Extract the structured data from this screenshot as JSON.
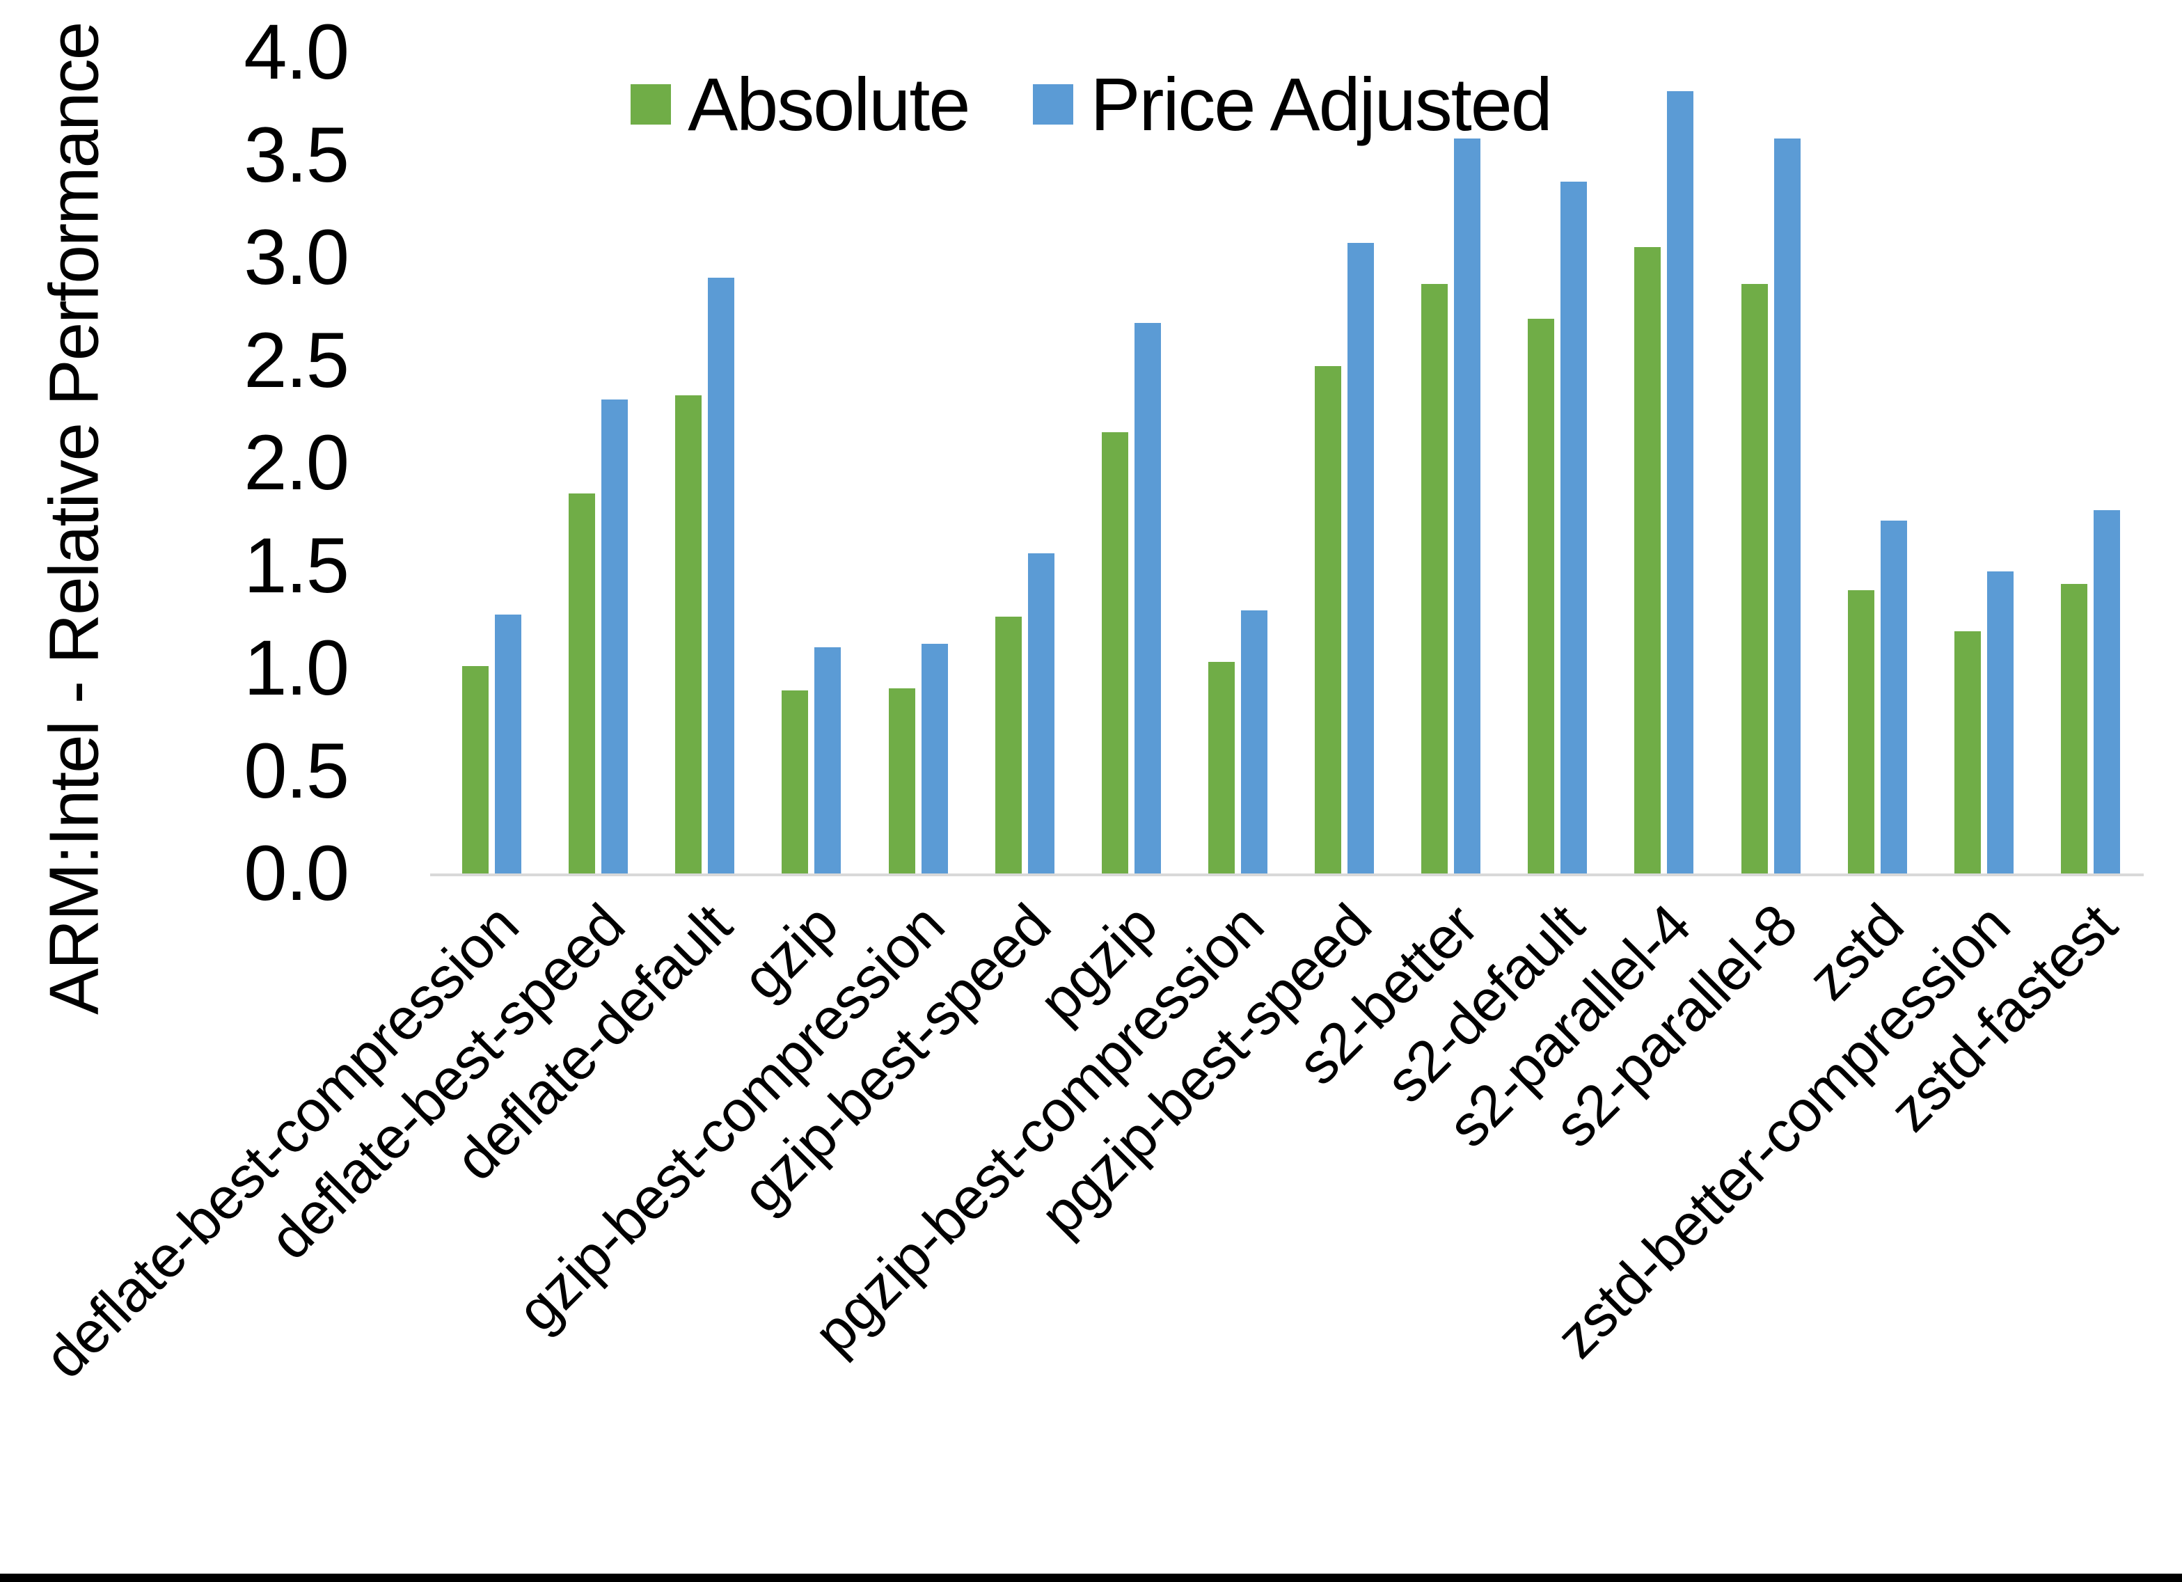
{
  "figure": {
    "y_axis_title": "ARM:Intel - Relative Performance",
    "y_tick_labels": [
      "0.0",
      "0.5",
      "1.0",
      "1.5",
      "2.0",
      "2.5",
      "3.0",
      "3.5",
      "4.0"
    ],
    "background_color": "#ffffff",
    "axis_line_color": "#d9d9d9",
    "bottom_border_color": "#000000"
  },
  "legend": {
    "items": [
      {
        "label": "Absolute",
        "color": "#70AD47"
      },
      {
        "label": "Price Adjusted",
        "color": "#5B9BD5"
      }
    ]
  },
  "chart_data": {
    "type": "bar",
    "title": "",
    "xlabel": "",
    "ylabel": "ARM:Intel - Relative Performance",
    "ylim": [
      0,
      4.0
    ],
    "ytick_step": 0.5,
    "grid": false,
    "legend_position": "top-center",
    "categories": [
      "deflate-best-compression",
      "deflate-best-speed",
      "deflate-default",
      "gzip",
      "gzip-best-compression",
      "gzip-best-speed",
      "pgzip",
      "pgzip-best-compression",
      "pgzip-best-speed",
      "s2-better",
      "s2-default",
      "s2-parallel-4",
      "s2-parallel-8",
      "zstd",
      "zstd-better-compression",
      "zstd-fastest"
    ],
    "series": [
      {
        "name": "Absolute",
        "color": "#70AD47",
        "values": [
          1.01,
          1.85,
          2.33,
          0.89,
          0.9,
          1.25,
          2.15,
          1.03,
          2.47,
          2.87,
          2.7,
          3.05,
          2.87,
          1.38,
          1.18,
          1.41
        ]
      },
      {
        "name": "Price Adjusted",
        "color": "#5B9BD5",
        "values": [
          1.26,
          2.31,
          2.9,
          1.1,
          1.12,
          1.56,
          2.68,
          1.28,
          3.07,
          3.58,
          3.37,
          3.81,
          3.58,
          1.72,
          1.47,
          1.77
        ]
      }
    ]
  }
}
